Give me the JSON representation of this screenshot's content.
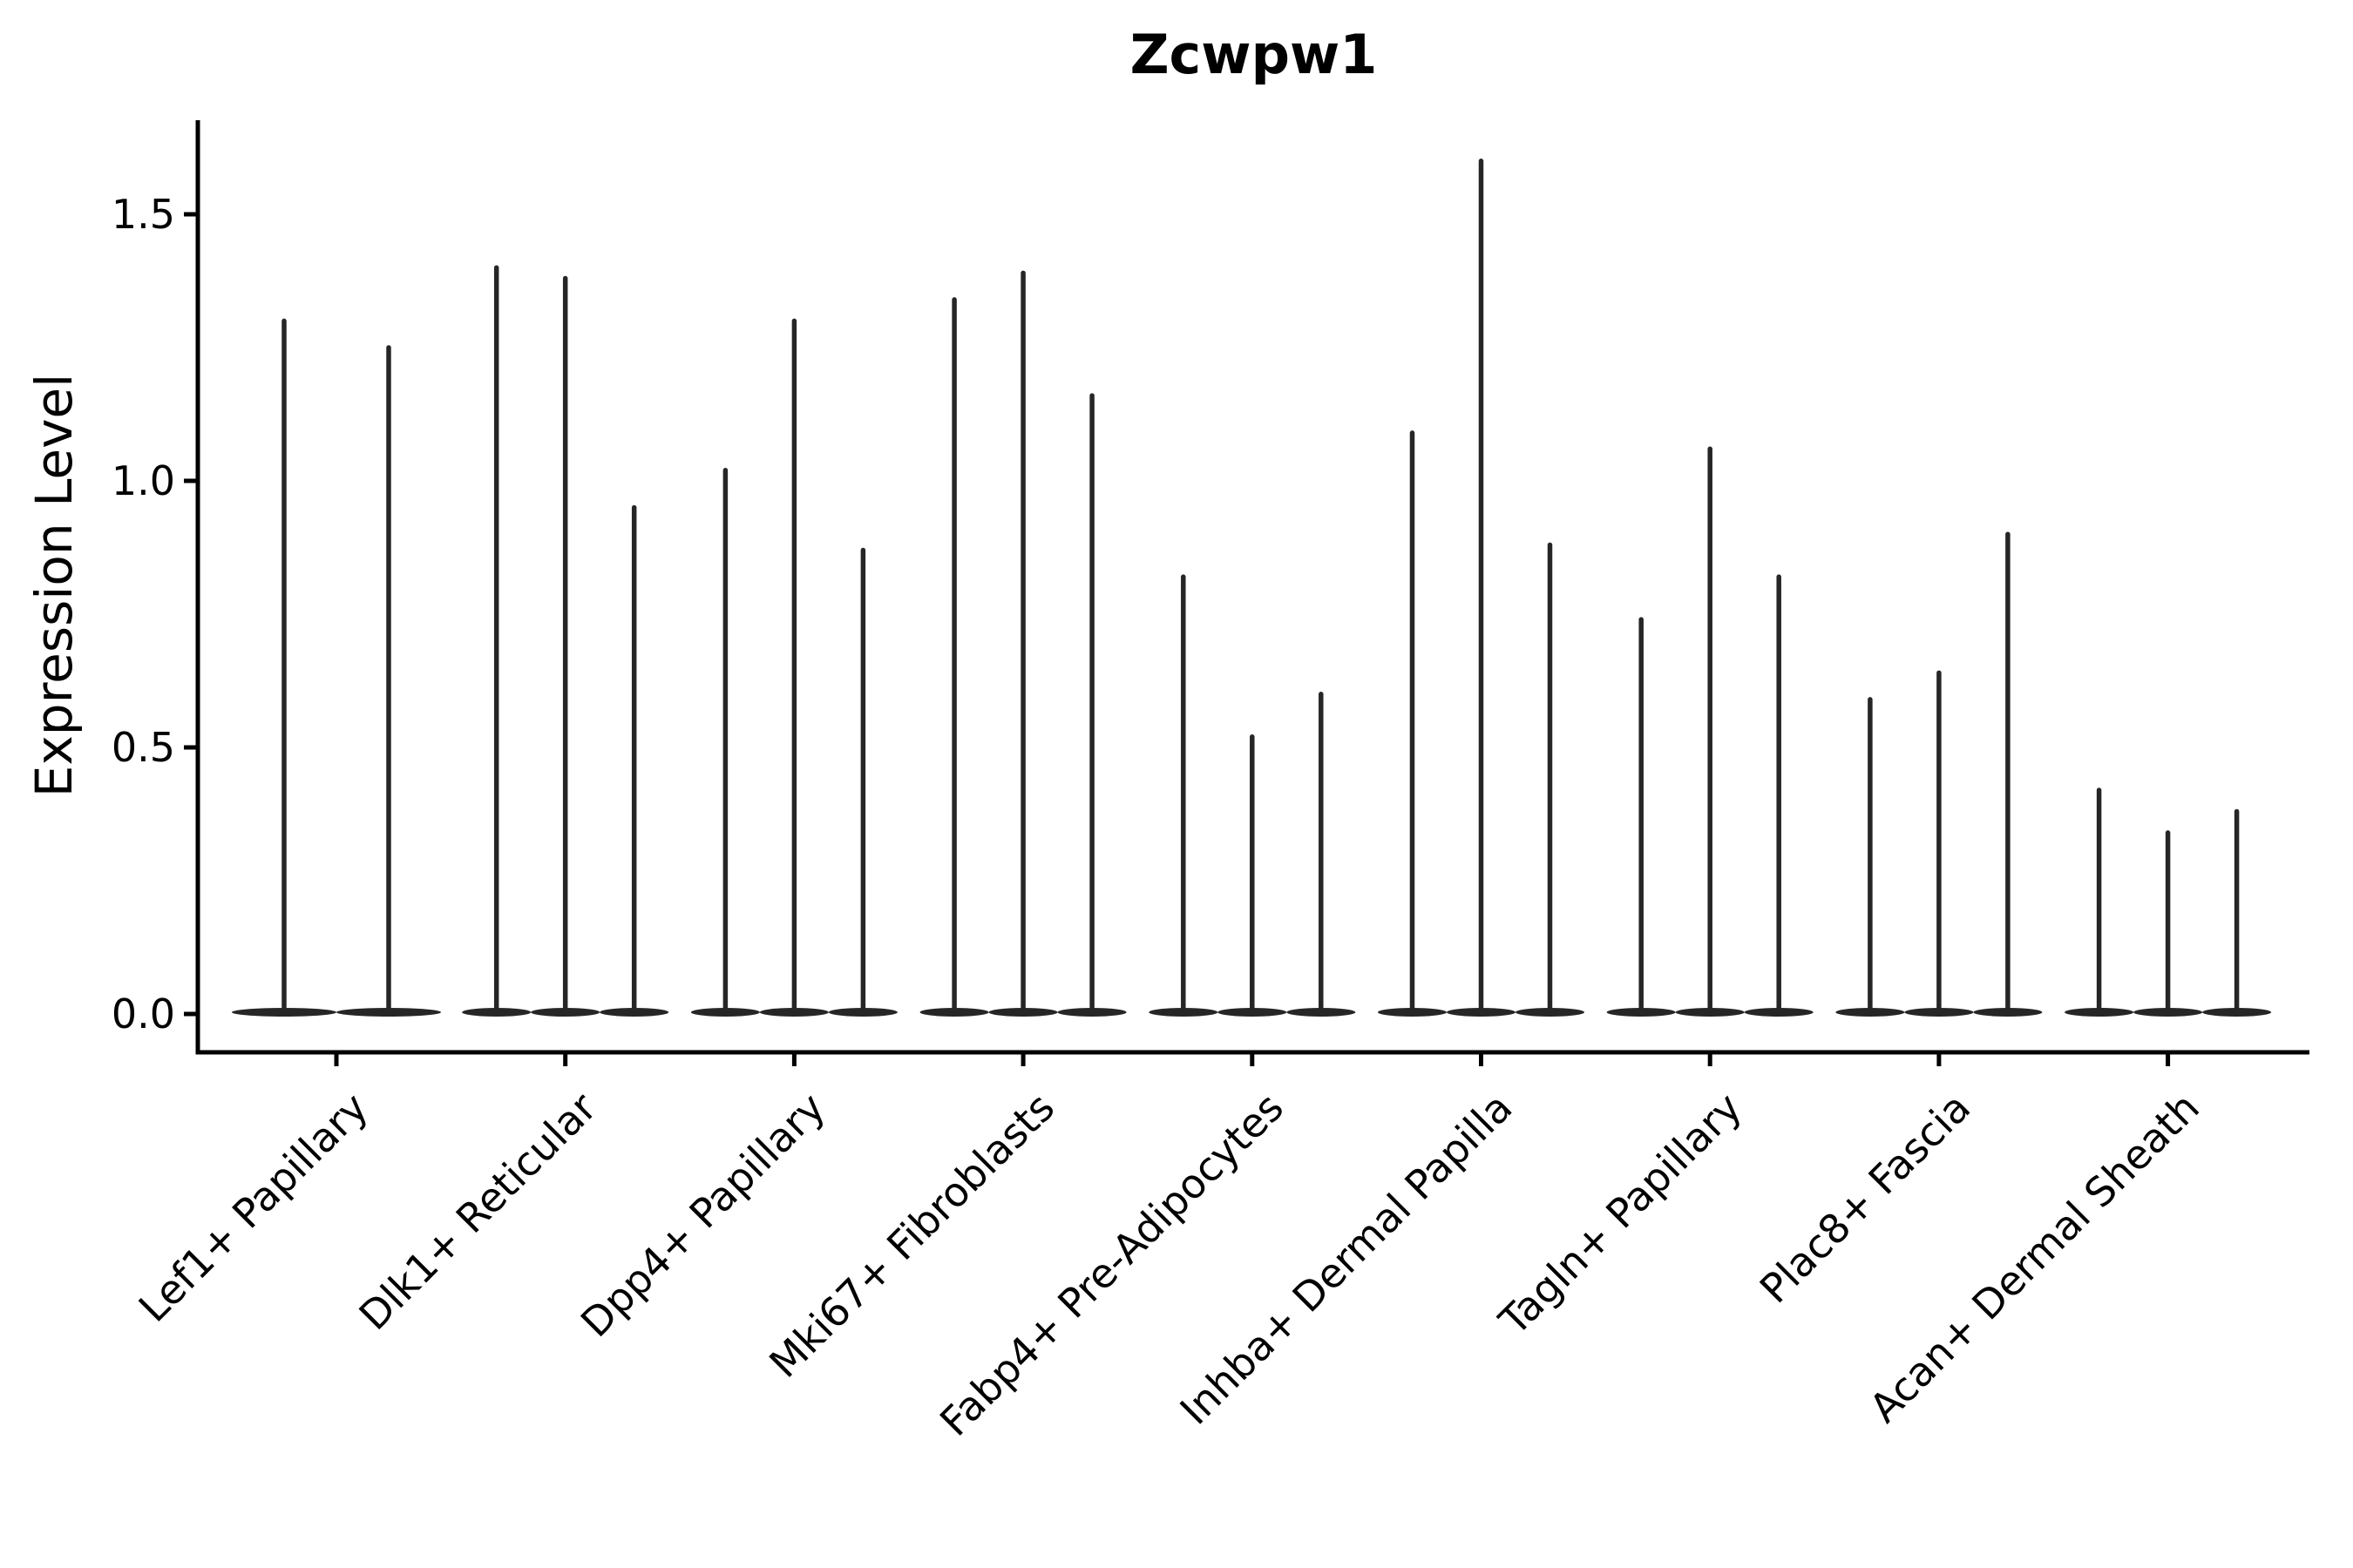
{
  "title": "Zcwpw1",
  "y_axis": {
    "label": "Expression Level",
    "ticks": [
      "0.0",
      "0.5",
      "1.0",
      "1.5"
    ]
  },
  "chart_data": {
    "type": "violin",
    "title": "Zcwpw1",
    "xlabel": "",
    "ylabel": "Expression Level",
    "ylim": [
      -0.08,
      1.68
    ],
    "y_ticks": [
      0.0,
      0.5,
      1.0,
      1.5
    ],
    "grid": false,
    "legend": "none",
    "categories": [
      "Lef1+ Papillary",
      "Dlk1+ Reticular",
      "Dpp4+ Papillary",
      "Mki67+ Fibroblasts",
      "Fabp4+ Pre-Adipocytes",
      "Inhba+ Dermal Papilla",
      "Tagln+ Papillary",
      "Plac8+ Fascia",
      "Acan+ Dermal Sheath"
    ],
    "groups": [
      {
        "label": "Lef1+ Papillary",
        "violin_maxima": [
          1.3,
          1.25
        ]
      },
      {
        "label": "Dlk1+ Reticular",
        "violin_maxima": [
          1.4,
          1.38,
          0.95
        ]
      },
      {
        "label": "Dpp4+ Papillary",
        "violin_maxima": [
          1.02,
          1.3,
          0.87
        ]
      },
      {
        "label": "Mki67+ Fibroblasts",
        "violin_maxima": [
          1.34,
          1.39,
          1.16
        ]
      },
      {
        "label": "Fabp4+ Pre-Adipocytes",
        "violin_maxima": [
          0.82,
          0.52,
          0.6
        ]
      },
      {
        "label": "Inhba+ Dermal Papilla",
        "violin_maxima": [
          1.09,
          1.6,
          0.88
        ]
      },
      {
        "label": "Tagln+ Papillary",
        "violin_maxima": [
          0.74,
          1.06,
          0.82
        ]
      },
      {
        "label": "Plac8+ Fascia",
        "violin_maxima": [
          0.59,
          0.64,
          0.9
        ]
      },
      {
        "label": "Acan+ Dermal Sheath",
        "violin_maxima": [
          0.42,
          0.34,
          0.38
        ]
      }
    ],
    "colors": {
      "violin": "#262626",
      "axis": "#000000",
      "background": "#ffffff"
    }
  }
}
